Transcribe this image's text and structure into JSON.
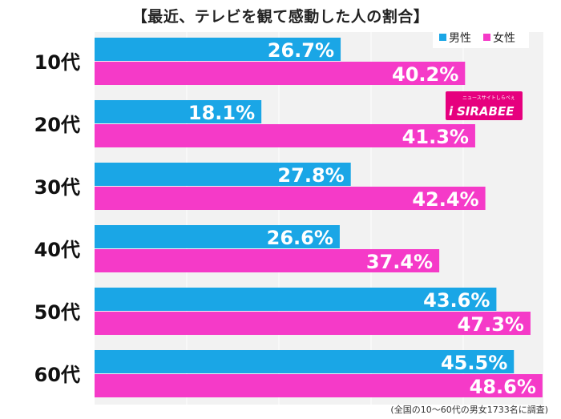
{
  "title": "【最近、テレビを観て感動した人の割合】",
  "note": "(全国の10〜60代の男女1733名に調査)",
  "logo": {
    "text": "SIRABEE",
    "subtext": "ニュースサイトしらべぇ",
    "color": "#e6007e"
  },
  "colors": {
    "male": "#1aa6e6",
    "female": "#f53ac8",
    "plot_bg": "#f2f2f2",
    "grid": "#ffffff"
  },
  "chart_data": {
    "type": "bar",
    "orientation": "horizontal",
    "title": "【最近、テレビを観て感動した人の割合】",
    "categories": [
      "10代",
      "20代",
      "30代",
      "40代",
      "50代",
      "60代"
    ],
    "series": [
      {
        "name": "男性",
        "values": [
          26.7,
          18.1,
          27.8,
          26.6,
          43.6,
          45.5
        ],
        "labels": [
          "26.7%",
          "18.1%",
          "27.8%",
          "26.6%",
          "43.6%",
          "45.5%"
        ]
      },
      {
        "name": "女性",
        "values": [
          40.2,
          41.3,
          42.4,
          37.4,
          47.3,
          48.6
        ],
        "labels": [
          "40.2%",
          "41.3%",
          "42.4%",
          "37.4%",
          "47.3%",
          "48.6%"
        ]
      }
    ],
    "xlim": [
      0,
      60
    ],
    "grid": true,
    "legend": "top-right"
  }
}
